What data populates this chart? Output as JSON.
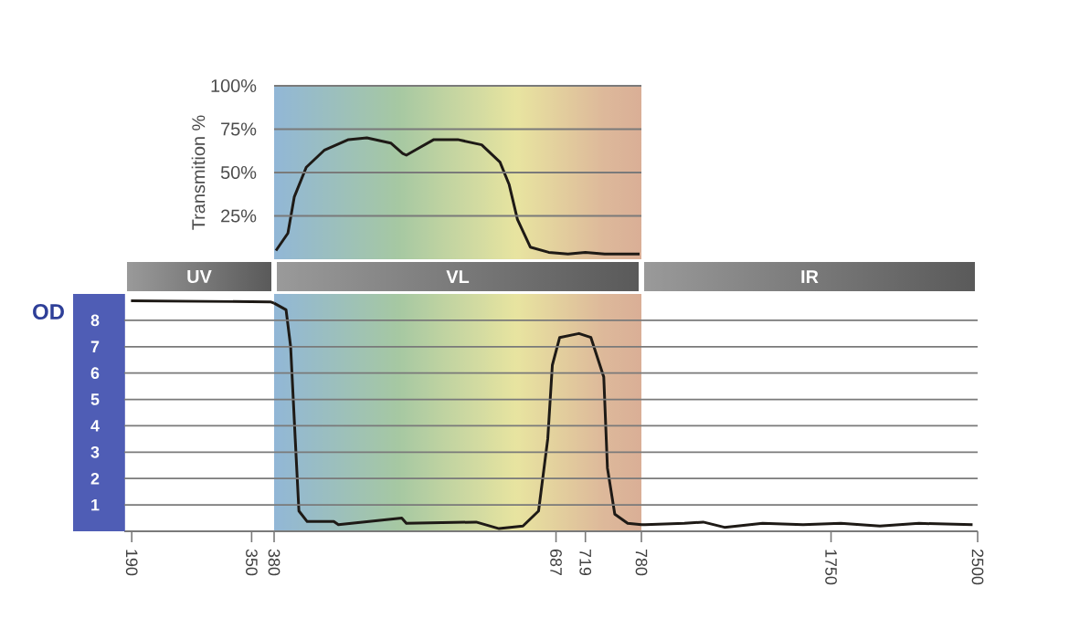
{
  "chart_data": [
    {
      "type": "line",
      "ylabel": "Transmition %",
      "color": "#1e1a16",
      "xlim": [
        380,
        780
      ],
      "ylim": [
        0,
        100
      ],
      "yticks": [
        {
          "value": 25,
          "label": "25%"
        },
        {
          "value": 50,
          "label": "50%"
        },
        {
          "value": 75,
          "label": "75%"
        },
        {
          "value": 100,
          "label": "100%"
        }
      ],
      "grid": "y",
      "tick_labels": "y",
      "x": [
        382,
        395,
        402,
        415,
        435,
        461,
        481,
        507,
        520,
        524,
        534,
        554,
        580,
        606,
        626,
        636,
        645,
        659,
        679,
        700,
        719,
        740,
        760,
        778
      ],
      "values": [
        5,
        15,
        36,
        53,
        63,
        69,
        70,
        67,
        61,
        60,
        63,
        69,
        69,
        66,
        56,
        43,
        23,
        7,
        4,
        3,
        4,
        3,
        3,
        3
      ]
    },
    {
      "type": "line",
      "title": "UV",
      "ylabel": "OD",
      "color": "#1e1a16",
      "xlim": [
        180,
        380
      ],
      "ylim": [
        0,
        9
      ],
      "yticks": [
        1,
        2,
        3,
        4,
        5,
        6,
        7,
        8
      ],
      "xticks": [
        190,
        350,
        380
      ],
      "grid": "y",
      "x": [
        189,
        375,
        380
      ],
      "values": [
        8.74,
        8.7,
        8.65
      ]
    },
    {
      "type": "line",
      "title": "VL",
      "color": "#1e1a16",
      "xlim": [
        380,
        780
      ],
      "ylim": [
        0,
        9
      ],
      "yticks": [
        1,
        2,
        3,
        4,
        5,
        6,
        7,
        8
      ],
      "xticks": [
        687,
        719,
        780
      ],
      "grid": "y",
      "tick_labels": "x",
      "x": [
        380,
        393,
        398,
        403,
        407,
        416,
        445,
        450,
        519,
        524,
        600,
        625,
        651,
        668,
        678,
        683,
        691,
        712,
        725,
        739,
        743,
        751,
        765,
        780
      ],
      "values": [
        8.65,
        8.4,
        7.0,
        3.5,
        0.77,
        0.37,
        0.37,
        0.25,
        0.5,
        0.3,
        0.35,
        0.1,
        0.2,
        0.77,
        3.5,
        6.3,
        7.35,
        7.5,
        7.35,
        5.85,
        2.4,
        0.65,
        0.3,
        0.25
      ]
    },
    {
      "type": "line",
      "title": "IR",
      "color": "#1e1a16",
      "xlim": [
        780,
        2500
      ],
      "ylim": [
        0,
        9
      ],
      "yticks": [
        1,
        2,
        3,
        4,
        5,
        6,
        7,
        8
      ],
      "xticks": [
        1750,
        2500
      ],
      "grid": "y",
      "tick_labels": "x",
      "x": [
        780,
        799,
        1000,
        1096,
        1205,
        1400,
        1607,
        1800,
        2000,
        2200,
        2474
      ],
      "values": [
        0.25,
        0.25,
        0.3,
        0.35,
        0.15,
        0.3,
        0.25,
        0.3,
        0.2,
        0.3,
        0.25
      ]
    }
  ]
}
